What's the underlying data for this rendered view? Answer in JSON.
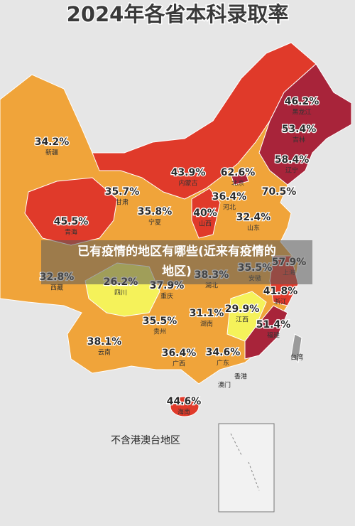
{
  "title": "2024年各省本科录取率",
  "caption": [
    "已有疫情的地区有哪些(近来有疫情的",
    "地区)"
  ],
  "note": "不含港澳台地区",
  "regions": [
    {
      "name": "新疆",
      "rate": "34.2%"
    },
    {
      "name": "西藏",
      "rate": "32.8%"
    },
    {
      "name": "青海",
      "rate": "45.5%"
    },
    {
      "name": "甘肃",
      "rate": "35.7%"
    },
    {
      "name": "内蒙古",
      "rate": "43.9%"
    },
    {
      "name": "宁夏",
      "rate": "35.8%"
    },
    {
      "name": "山西",
      "rate": "40%"
    },
    {
      "name": "北京",
      "rate": "62.6%"
    },
    {
      "name": "河北",
      "rate": "36.4%"
    },
    {
      "rate": "70.5%"
    },
    {
      "name": "黑龙江",
      "rate": "46.2%"
    },
    {
      "name": "吉林",
      "rate": "53.4%"
    },
    {
      "name": "辽宁",
      "rate": "58.4%"
    },
    {
      "name": "山东",
      "rate": "32.4%"
    },
    {
      "name": "四川",
      "rate": "26.2%"
    },
    {
      "name": "重庆",
      "rate": "37.9%"
    },
    {
      "name": "湖北",
      "rate": "38.3%"
    },
    {
      "name": "安徽",
      "rate": "35.5%"
    },
    {
      "name": "上海",
      "rate": "57.9%"
    },
    {
      "name": "浙江",
      "rate": "41.8%"
    },
    {
      "name": "江西",
      "rate": "29.9%"
    },
    {
      "name": "福建",
      "rate": "51.4%"
    },
    {
      "name": "贵州",
      "rate": "35.5%"
    },
    {
      "name": "湖南",
      "rate": "31.1%"
    },
    {
      "name": "云南",
      "rate": "38.1%"
    },
    {
      "name": "广西",
      "rate": "36.4%"
    },
    {
      "name": "广东",
      "rate": "34.6%"
    },
    {
      "name": "海南",
      "rate": "44.6%"
    }
  ],
  "places": [
    "香港",
    "澳门",
    "台湾"
  ]
}
